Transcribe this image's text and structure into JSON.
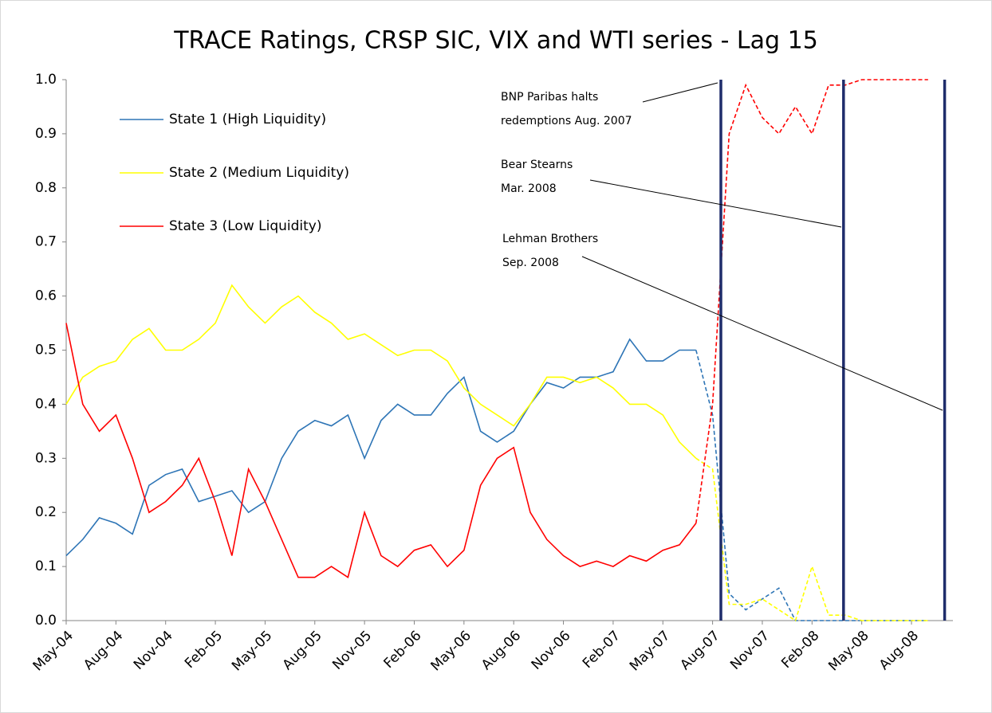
{
  "chart_data": {
    "type": "line",
    "title": "TRACE Ratings, CRSP SIC, VIX and WTI series - Lag 15",
    "x": [
      0,
      1,
      2,
      3,
      4,
      5,
      6,
      7,
      8,
      9,
      10,
      11,
      12,
      13,
      14,
      15,
      16,
      17,
      18,
      19,
      20,
      21,
      22,
      23,
      24,
      25,
      26,
      27,
      28,
      29,
      30,
      31,
      32,
      33,
      34,
      35,
      36,
      37,
      38,
      39,
      40,
      41,
      42,
      43,
      44,
      45,
      46,
      47,
      48,
      49,
      50,
      51,
      52
    ],
    "xlim": [
      0,
      53.5
    ],
    "xticks": [
      {
        "value": 0,
        "label": "May-04"
      },
      {
        "value": 3,
        "label": "Aug-04"
      },
      {
        "value": 6,
        "label": "Nov-04"
      },
      {
        "value": 9,
        "label": "Feb-05"
      },
      {
        "value": 12,
        "label": "May-05"
      },
      {
        "value": 15,
        "label": "Aug-05"
      },
      {
        "value": 18,
        "label": "Nov-05"
      },
      {
        "value": 21,
        "label": "Feb-06"
      },
      {
        "value": 24,
        "label": "May-06"
      },
      {
        "value": 27,
        "label": "Aug-06"
      },
      {
        "value": 30,
        "label": "Nov-06"
      },
      {
        "value": 33,
        "label": "Feb-07"
      },
      {
        "value": 36,
        "label": "May-07"
      },
      {
        "value": 39,
        "label": "Aug-07"
      },
      {
        "value": 42,
        "label": "Nov-07"
      },
      {
        "value": 45,
        "label": "Feb-08"
      },
      {
        "value": 48,
        "label": "May-08"
      },
      {
        "value": 51,
        "label": "Aug-08"
      }
    ],
    "ylim": [
      0,
      1
    ],
    "yticks": [
      {
        "value": 0,
        "label": "0.0"
      },
      {
        "value": 0.1,
        "label": "0.1"
      },
      {
        "value": 0.2,
        "label": "0.2"
      },
      {
        "value": 0.3,
        "label": "0.3"
      },
      {
        "value": 0.4,
        "label": "0.4"
      },
      {
        "value": 0.5,
        "label": "0.5"
      },
      {
        "value": 0.6,
        "label": "0.6"
      },
      {
        "value": 0.7,
        "label": "0.7"
      },
      {
        "value": 0.8,
        "label": "0.8"
      },
      {
        "value": 0.9,
        "label": "0.9"
      },
      {
        "value": 1,
        "label": "1.0"
      }
    ],
    "series": [
      {
        "name": "State 1 (High Liquidity)",
        "color": "#2e75b6",
        "values": [
          0.12,
          0.15,
          0.19,
          0.18,
          0.16,
          0.25,
          0.27,
          0.28,
          0.22,
          0.23,
          0.24,
          0.2,
          0.22,
          0.3,
          0.35,
          0.37,
          0.36,
          0.38,
          0.3,
          0.37,
          0.4,
          0.38,
          0.38,
          0.42,
          0.45,
          0.35,
          0.33,
          0.35,
          0.4,
          0.44,
          0.43,
          0.45,
          0.45,
          0.46,
          0.52,
          0.48,
          0.48,
          0.5,
          0.5,
          null,
          null,
          null,
          null,
          null,
          null,
          null,
          null,
          null,
          null,
          null,
          null,
          null,
          null
        ]
      },
      {
        "name": "State 2 (Medium Liquidity)",
        "color": "#ffff00",
        "values": [
          0.4,
          0.45,
          0.47,
          0.48,
          0.52,
          0.54,
          0.5,
          0.5,
          0.52,
          0.55,
          0.62,
          0.58,
          0.55,
          0.58,
          0.6,
          0.57,
          0.55,
          0.52,
          0.53,
          0.51,
          0.49,
          0.5,
          0.5,
          0.48,
          0.43,
          0.4,
          0.38,
          0.36,
          0.4,
          0.45,
          0.45,
          0.44,
          0.45,
          0.43,
          0.4,
          0.4,
          0.38,
          0.33,
          0.3,
          null,
          null,
          null,
          null,
          null,
          null,
          null,
          null,
          null,
          null,
          null,
          null,
          null,
          null
        ]
      },
      {
        "name": "State 3 (Low Liquidity)",
        "color": "#ff0000",
        "values": [
          0.55,
          0.4,
          0.35,
          0.38,
          0.3,
          0.2,
          0.22,
          0.25,
          0.3,
          0.22,
          0.12,
          0.28,
          0.22,
          0.15,
          0.08,
          0.08,
          0.1,
          0.08,
          0.2,
          0.12,
          0.1,
          0.13,
          0.14,
          0.1,
          0.13,
          0.25,
          0.3,
          0.32,
          0.2,
          0.15,
          0.12,
          0.1,
          0.11,
          0.1,
          0.12,
          0.11,
          0.13,
          0.14,
          0.18,
          null,
          null,
          null,
          null,
          null,
          null,
          null,
          null,
          null,
          null,
          null,
          null,
          null,
          null
        ]
      },
      {
        "color": "#2e75b6",
        "dash": true,
        "values": [
          null,
          null,
          null,
          null,
          null,
          null,
          null,
          null,
          null,
          null,
          null,
          null,
          null,
          null,
          null,
          null,
          null,
          null,
          null,
          null,
          null,
          null,
          null,
          null,
          null,
          null,
          null,
          null,
          null,
          null,
          null,
          null,
          null,
          null,
          null,
          null,
          null,
          null,
          0.5,
          0.38,
          0.05,
          0.02,
          0.04,
          0.06,
          0,
          0,
          0,
          0,
          0,
          0,
          0,
          0,
          0
        ]
      },
      {
        "color": "#ffff00",
        "dash": true,
        "values": [
          null,
          null,
          null,
          null,
          null,
          null,
          null,
          null,
          null,
          null,
          null,
          null,
          null,
          null,
          null,
          null,
          null,
          null,
          null,
          null,
          null,
          null,
          null,
          null,
          null,
          null,
          null,
          null,
          null,
          null,
          null,
          null,
          null,
          null,
          null,
          null,
          null,
          null,
          0.3,
          0.28,
          0.03,
          0.03,
          0.04,
          0.02,
          0,
          0.1,
          0.01,
          0.01,
          0,
          0,
          0,
          0,
          0
        ]
      },
      {
        "color": "#ff0000",
        "dash": true,
        "values": [
          null,
          null,
          null,
          null,
          null,
          null,
          null,
          null,
          null,
          null,
          null,
          null,
          null,
          null,
          null,
          null,
          null,
          null,
          null,
          null,
          null,
          null,
          null,
          null,
          null,
          null,
          null,
          null,
          null,
          null,
          null,
          null,
          null,
          null,
          null,
          null,
          null,
          null,
          0.18,
          0.4,
          0.9,
          0.99,
          0.93,
          0.9,
          0.95,
          0.9,
          0.99,
          0.99,
          1,
          1,
          1,
          1,
          1
        ]
      }
    ],
    "events": [
      {
        "x": 39.5,
        "color": "#1f2d6b",
        "label": [
          "BNP Paribas halts",
          "redemptions Aug. 2007"
        ]
      },
      {
        "x": 46.9,
        "color": "#1f2d6b",
        "label": [
          "Bear Stearns",
          "Mar. 2008"
        ]
      },
      {
        "x": 53,
        "color": "#1f2d6b",
        "label": [
          "Lehman Brothers",
          "Sep. 2008"
        ]
      }
    ]
  }
}
